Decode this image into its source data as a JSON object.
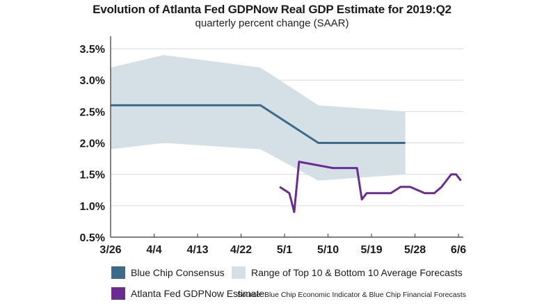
{
  "chart_data": {
    "type": "line",
    "title": "Evolution of Atlanta Fed GDPNow Real GDP Estimate for 2019:Q2",
    "subtitle": "quarterly percent change (SAAR)",
    "xlabel": "",
    "ylabel": "",
    "x_tick_labels": [
      "3/26",
      "4/4",
      "4/13",
      "4/22",
      "5/1",
      "5/10",
      "5/19",
      "5/28",
      "6/6"
    ],
    "x_tick_days": [
      0,
      9,
      18,
      27,
      36,
      45,
      54,
      63,
      72
    ],
    "y_ticks": [
      0.5,
      1.0,
      1.5,
      2.0,
      2.5,
      3.0,
      3.5
    ],
    "y_tick_labels": [
      "0.5%",
      "1.0%",
      "1.5%",
      "2.0%",
      "2.5%",
      "3.0%",
      "3.5%"
    ],
    "ylim": [
      0.5,
      3.7
    ],
    "xlim": [
      0,
      73
    ],
    "grid": true,
    "series": [
      {
        "name": "Range of Top 10 & Bottom 10 Average Forecasts",
        "kind": "band",
        "color": "#d4e0e6",
        "x": [
          0,
          11,
          31,
          43,
          61
        ],
        "upper": [
          3.2,
          3.4,
          3.2,
          2.6,
          2.5
        ],
        "lower": [
          1.9,
          2.0,
          1.9,
          1.4,
          1.5
        ]
      },
      {
        "name": "Blue Chip Consensus",
        "kind": "line",
        "color": "#3b6b88",
        "x": [
          0,
          31,
          43,
          61
        ],
        "values": [
          2.6,
          2.6,
          2.0,
          2.0
        ]
      },
      {
        "name": "Atlanta Fed GDPNow Estimate",
        "kind": "line",
        "color": "#6a2c91",
        "x": [
          35,
          37,
          38,
          39,
          46,
          51,
          52,
          53,
          58,
          60,
          62,
          65,
          67,
          68.5,
          70.5,
          71.5,
          72.5
        ],
        "values": [
          1.3,
          1.2,
          0.9,
          1.7,
          1.6,
          1.6,
          1.1,
          1.2,
          1.2,
          1.3,
          1.3,
          1.2,
          1.2,
          1.3,
          1.5,
          1.5,
          1.4
        ]
      }
    ]
  },
  "legend": {
    "consensus": "Blue Chip Consensus",
    "range": "Range of Top 10 & Bottom 10 Average Forecasts",
    "gdpnow": "Atlanta Fed GDPNow Estimate"
  },
  "source": "Source: Blue Chip Economic Indicator & Blue Chip Financial Forecasts"
}
